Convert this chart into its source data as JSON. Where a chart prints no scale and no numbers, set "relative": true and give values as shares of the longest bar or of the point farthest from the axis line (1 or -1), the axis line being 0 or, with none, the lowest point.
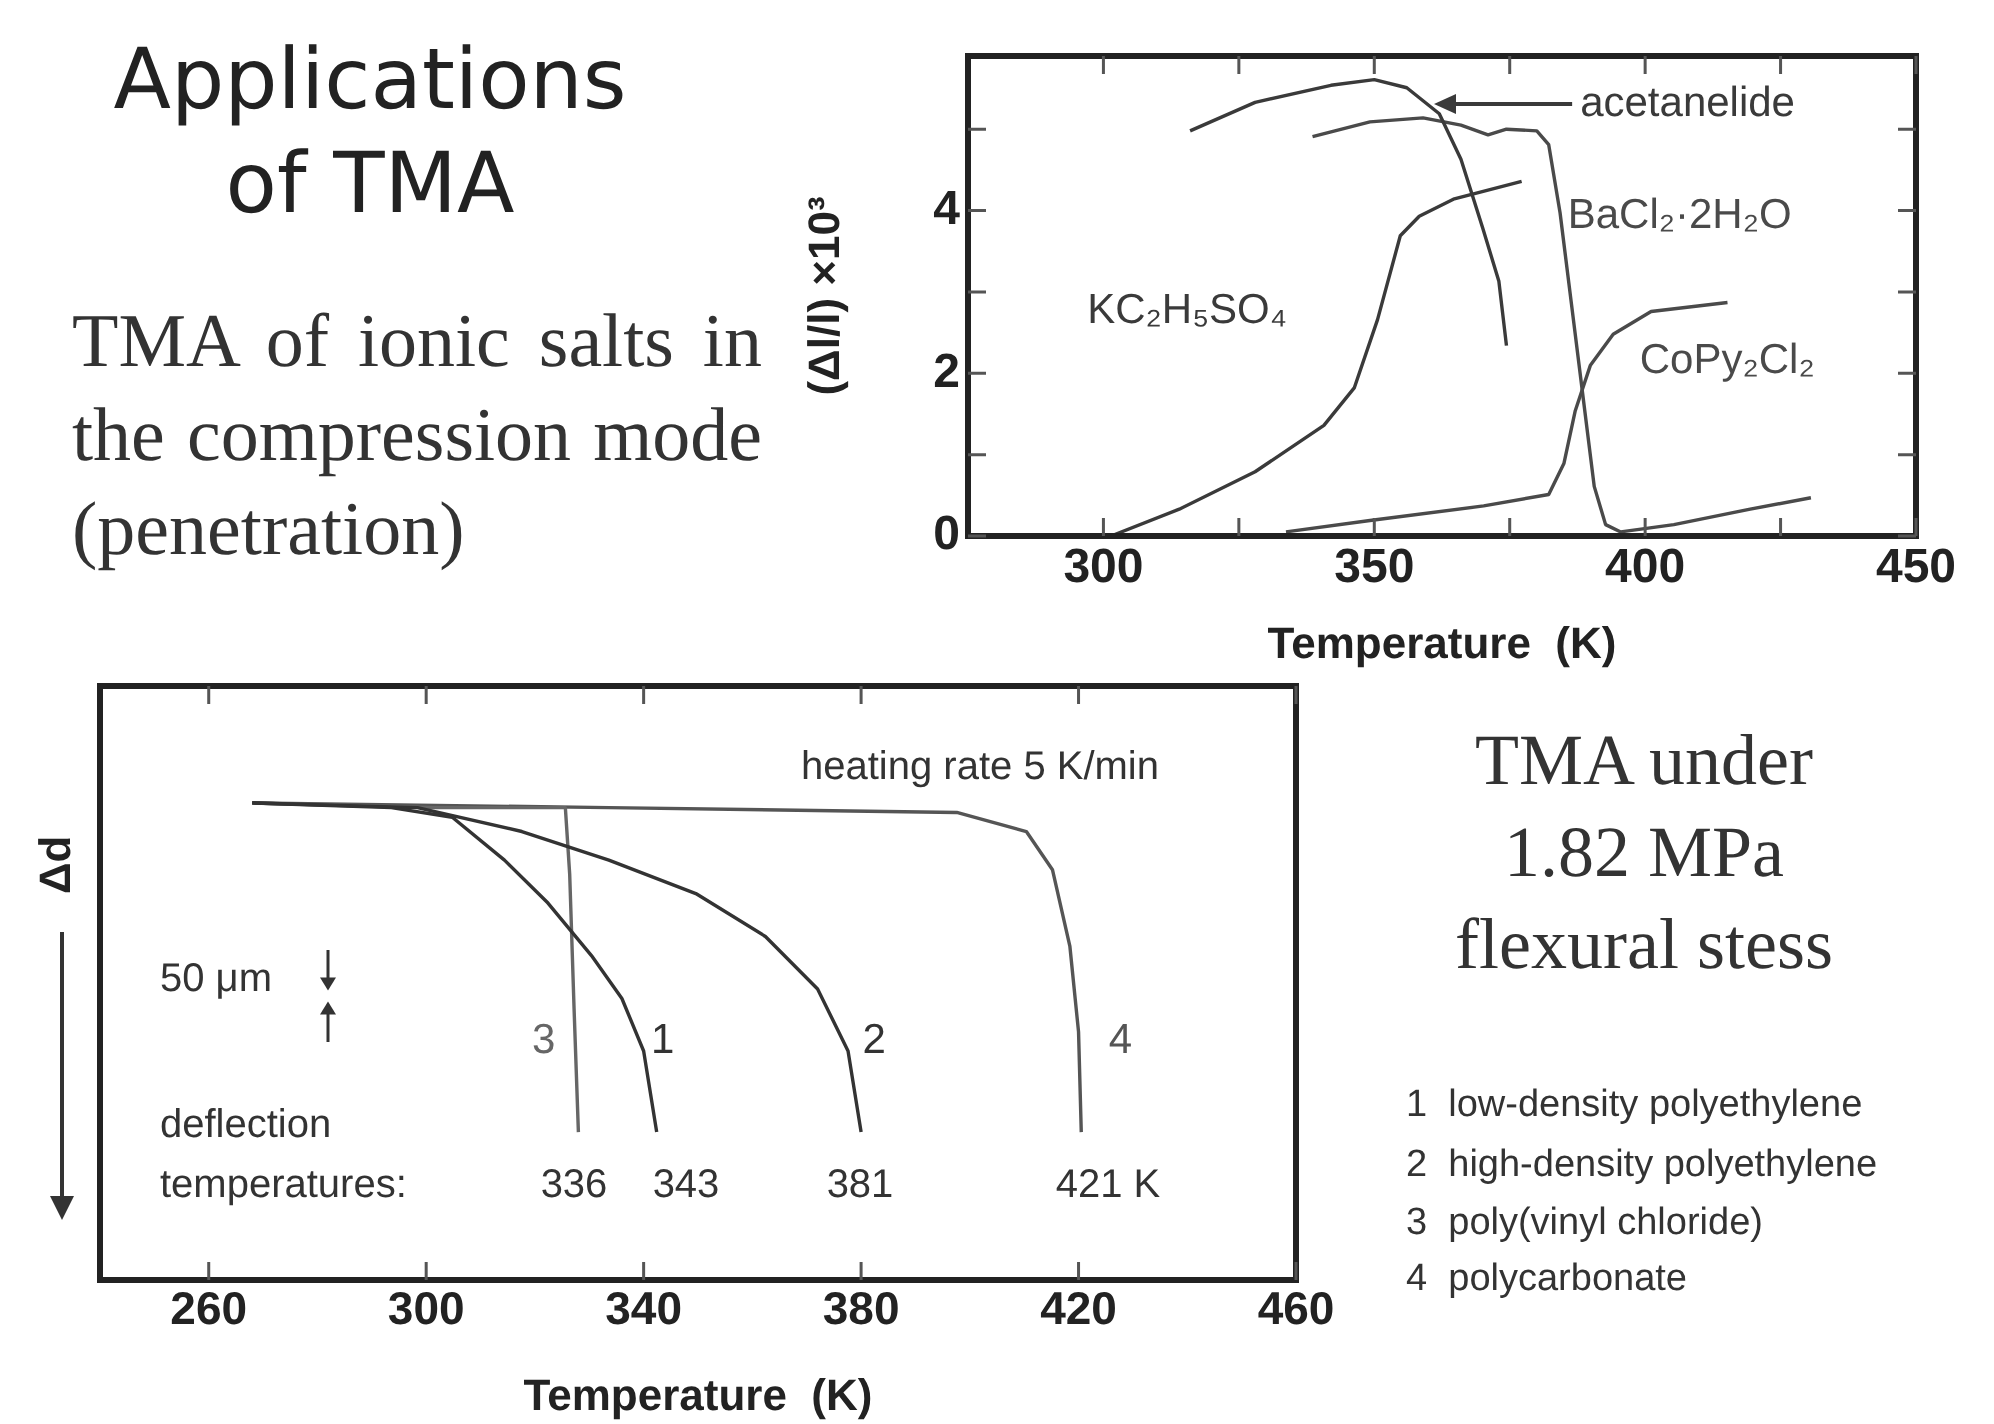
{
  "chart_data": [
    {
      "type": "line",
      "title": "Applications of TMA",
      "subtitle": "TMA of ionic salts in the compression mode (penetration)",
      "xlabel": "Temperature  (K)",
      "ylabel": "(Δl/l) ×10³",
      "xlim": [
        275,
        450
      ],
      "xticks": [
        300,
        {
          "value": 325,
          "label": null
        },
        350,
        {
          "value": 375,
          "label": null
        },
        400,
        {
          "value": 425,
          "label": null
        },
        450
      ],
      "ylim": [
        0,
        5.9
      ],
      "yticks": [
        0,
        {
          "value": 1,
          "label": null
        },
        2,
        {
          "value": 3,
          "label": null
        },
        4,
        {
          "value": 5,
          "label": null
        }
      ],
      "series": [
        {
          "name": "acetanelide",
          "color": "#3a3a3a",
          "x": [
            316,
            328,
            342,
            350,
            356,
            362,
            366,
            370,
            373,
            374.4
          ],
          "values": [
            4.98,
            5.33,
            5.54,
            5.61,
            5.51,
            5.19,
            4.63,
            3.79,
            3.13,
            2.34
          ]
        },
        {
          "name": "BaCl₂·2H₂O",
          "color": "#4a4a4a",
          "x": [
            338.6,
            349.2,
            359,
            366,
            371,
            374.4,
            380,
            382.2,
            384.3,
            386.4,
            388.5,
            390.6,
            392.7,
            395.5,
            405.3,
            419.4,
            430.6
          ],
          "values": [
            4.91,
            5.09,
            5.14,
            5.05,
            4.93,
            5.0,
            4.98,
            4.81,
            3.97,
            2.85,
            1.73,
            0.61,
            0.14,
            0.05,
            0.14,
            0.33,
            0.47
          ]
        },
        {
          "name": "KC₂H₅SO₄",
          "color": "#3a3a3a",
          "x": [
            301.4,
            314,
            328,
            340.7,
            346.3,
            350.6,
            354.8,
            358.3,
            364.6,
            377.2
          ],
          "values": [
            0,
            0.33,
            0.79,
            1.36,
            1.82,
            2.66,
            3.69,
            3.93,
            4.14,
            4.36
          ]
        },
        {
          "name": "CoPy₂Cl₂",
          "color": "#4a4a4a",
          "x": [
            333.7,
            349.2,
            370.2,
            382.2,
            385,
            387.1,
            389.9,
            394.1,
            401.1,
            415.2
          ],
          "values": [
            0.05,
            0.19,
            0.37,
            0.51,
            0.89,
            1.54,
            2.1,
            2.48,
            2.76,
            2.87
          ]
        }
      ]
    },
    {
      "type": "line",
      "xlabel": "Temperature  (K)",
      "ylabel": "Δd",
      "relative": true,
      "xlim": [
        240,
        460
      ],
      "xticks": [
        260,
        300,
        340,
        380,
        420,
        460
      ],
      "series": [
        {
          "name": "1",
          "color": "#333333",
          "x": [
            268,
            293.6,
            304.8,
            314.4,
            322.4,
            330.4,
            336,
            340,
            342.4
          ],
          "values": [
            1,
            0.99,
            0.97,
            0.88,
            0.79,
            0.68,
            0.59,
            0.48,
            0.31
          ]
        },
        {
          "name": "2",
          "color": "#333333",
          "x": [
            268,
            298.4,
            317.6,
            333.6,
            349.6,
            362.4,
            372,
            377.6,
            380
          ],
          "values": [
            1,
            0.99,
            0.94,
            0.88,
            0.81,
            0.72,
            0.61,
            0.48,
            0.31
          ]
        },
        {
          "name": "3",
          "color": "#666666",
          "x": [
            268,
            301.6,
            325.6,
            326.4,
            327.2,
            328
          ],
          "values": [
            1,
            0.99,
            0.99,
            0.85,
            0.57,
            0.31
          ]
        },
        {
          "name": "4",
          "color": "#555555",
          "x": [
            268,
            333.6,
            397.6,
            410.4,
            415.2,
            418.4,
            420,
            420.5
          ],
          "values": [
            1,
            0.99,
            0.98,
            0.94,
            0.86,
            0.7,
            0.52,
            0.31
          ]
        }
      ],
      "annotations": [
        "heating rate 5 K/min",
        "50 μm",
        "deflection",
        "temperatures:",
        "336",
        "343",
        "381",
        "421 K",
        "1  low-density polyethylene",
        "2  high-density polyethylene",
        "3  poly(vinyl chloride)",
        "4  polycarbonate",
        "TMA under 1.82 MPa flexural stess"
      ]
    }
  ]
}
